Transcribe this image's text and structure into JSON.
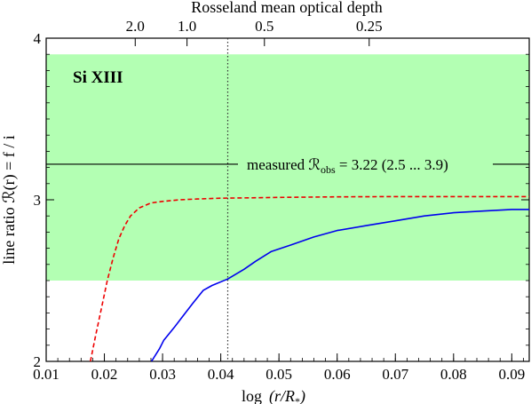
{
  "chart_data": {
    "type": "line",
    "xlabel_main": "log",
    "xlabel_expr": "(r/R",
    "xlabel_sub": "*",
    "xlabel_close": ")",
    "ylabel": "line ratio ℛ(r) = f / i",
    "top_axis_label": "Rosseland mean optical depth",
    "ion_label": "Si XIII",
    "xlim": [
      0.01,
      0.093
    ],
    "ylim": [
      2,
      4
    ],
    "x_ticks": [
      {
        "value": 0.01,
        "label": "0.01"
      },
      {
        "value": 0.02,
        "label": "0.02"
      },
      {
        "value": 0.03,
        "label": "0.03"
      },
      {
        "value": 0.04,
        "label": "0.04"
      },
      {
        "value": 0.05,
        "label": "0.05"
      },
      {
        "value": 0.06,
        "label": "0.06"
      },
      {
        "value": 0.07,
        "label": "0.07"
      },
      {
        "value": 0.08,
        "label": "0.08"
      },
      {
        "value": 0.09,
        "label": "0.09"
      }
    ],
    "y_ticks": [
      {
        "value": 2,
        "label": "2"
      },
      {
        "value": 3,
        "label": "3"
      },
      {
        "value": 4,
        "label": "4"
      }
    ],
    "top_ticks": [
      {
        "x": 0.0253,
        "label": "2.0"
      },
      {
        "x": 0.0342,
        "label": "1.0"
      },
      {
        "x": 0.0475,
        "label": "0.5"
      },
      {
        "x": 0.0655,
        "label": "0.25"
      }
    ],
    "measured": {
      "value": 3.22,
      "label_prefix": "measured ℛ",
      "label_sub": "obs",
      "label_suffix": " = 3.22  (2.5 ... 3.9)",
      "band": [
        2.5,
        3.9
      ],
      "band_color": "#b3ffb3"
    },
    "reference_line_x": 0.0412,
    "series": [
      {
        "color": "#0000ee",
        "dash": "solid",
        "x": [
          0.0281,
          0.0295,
          0.0302,
          0.032,
          0.0335,
          0.0352,
          0.037,
          0.0385,
          0.0412,
          0.044,
          0.046,
          0.0487,
          0.052,
          0.056,
          0.06,
          0.065,
          0.07,
          0.075,
          0.08,
          0.085,
          0.09,
          0.093
        ],
        "y": [
          2.0,
          2.08,
          2.13,
          2.21,
          2.28,
          2.36,
          2.44,
          2.47,
          2.51,
          2.57,
          2.62,
          2.68,
          2.72,
          2.77,
          2.81,
          2.84,
          2.87,
          2.9,
          2.92,
          2.93,
          2.94,
          2.94
        ]
      },
      {
        "color": "#ee0000",
        "dash": "dashed",
        "x": [
          0.0176,
          0.0185,
          0.0195,
          0.0205,
          0.0215,
          0.0225,
          0.0235,
          0.0245,
          0.026,
          0.028,
          0.03,
          0.033,
          0.036,
          0.04,
          0.045,
          0.05,
          0.06,
          0.07,
          0.08,
          0.09,
          0.093
        ],
        "y": [
          2.0,
          2.16,
          2.33,
          2.5,
          2.64,
          2.76,
          2.84,
          2.9,
          2.95,
          2.98,
          2.99,
          3.0,
          3.005,
          3.01,
          3.012,
          3.015,
          3.018,
          3.02,
          3.02,
          3.02,
          3.02
        ]
      }
    ]
  }
}
